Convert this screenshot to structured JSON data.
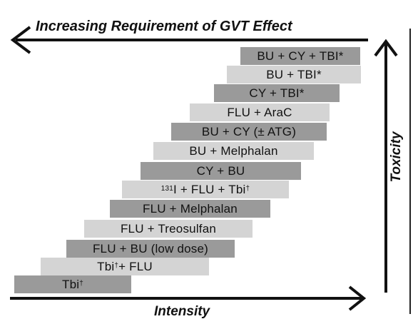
{
  "labels": {
    "top_arrow": "Increasing Requirement of GVT Effect",
    "bottom_arrow": "Intensity",
    "right_arrow": "Toxicity"
  },
  "steps": [
    {
      "parts": [
        {
          "t": "Tbi"
        },
        {
          "t": "†",
          "sup": true
        }
      ],
      "shade": "dark"
    },
    {
      "parts": [
        {
          "t": "Tbi"
        },
        {
          "t": "†",
          "sup": true
        },
        {
          "t": " + FLU"
        }
      ],
      "shade": "light"
    },
    {
      "parts": [
        {
          "t": "FLU + BU (low dose)"
        }
      ],
      "shade": "dark"
    },
    {
      "parts": [
        {
          "t": "FLU + Treosulfan"
        }
      ],
      "shade": "light"
    },
    {
      "parts": [
        {
          "t": "FLU + Melphalan"
        }
      ],
      "shade": "dark"
    },
    {
      "parts": [
        {
          "t": "131",
          "sup": true
        },
        {
          "t": "I + FLU + Tbi"
        },
        {
          "t": "†",
          "sup": true
        }
      ],
      "shade": "light"
    },
    {
      "parts": [
        {
          "t": "CY + BU"
        }
      ],
      "shade": "dark"
    },
    {
      "parts": [
        {
          "t": "BU + Melphalan"
        }
      ],
      "shade": "light"
    },
    {
      "parts": [
        {
          "t": "BU + CY (± ATG)"
        }
      ],
      "shade": "dark"
    },
    {
      "parts": [
        {
          "t": "FLU + AraC"
        }
      ],
      "shade": "light"
    },
    {
      "parts": [
        {
          "t": "CY + TBI*"
        }
      ],
      "shade": "dark"
    },
    {
      "parts": [
        {
          "t": "BU + TBI*"
        }
      ],
      "shade": "light"
    },
    {
      "parts": [
        {
          "t": "BU + CY + TBI*"
        }
      ],
      "shade": "dark"
    }
  ],
  "colors": {
    "dark": "#9a9a9a",
    "light": "#d4d4d4",
    "arrow": "#111111"
  }
}
